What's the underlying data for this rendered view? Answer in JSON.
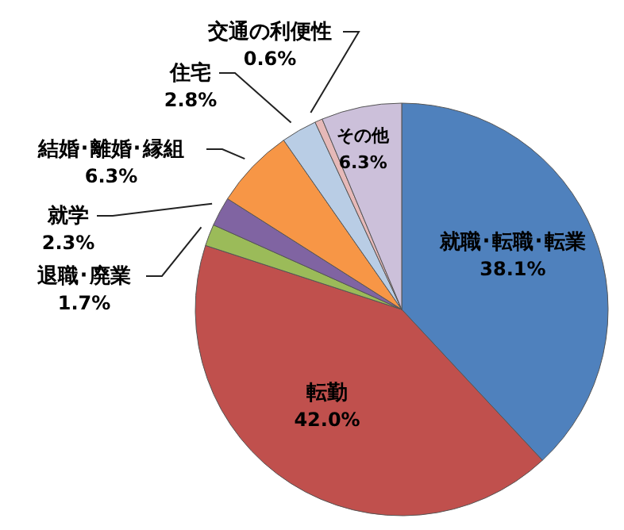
{
  "chart_data": {
    "type": "pie",
    "categories": [
      "就職･転職･転業",
      "転勤",
      "退職･廃業",
      "就学",
      "結婚･離婚･縁組",
      "住宅",
      "交通の利便性",
      "その他"
    ],
    "values": [
      38.1,
      42.0,
      1.7,
      2.3,
      6.3,
      2.8,
      0.6,
      6.3
    ],
    "value_labels": [
      "38.1%",
      "42.0%",
      "1.7%",
      "2.3%",
      "6.3%",
      "2.8%",
      "0.6%",
      "6.3%"
    ],
    "colors": [
      "#4f81bd",
      "#c0504d",
      "#9bbb59",
      "#8064a2",
      "#f79646",
      "#b9cde5",
      "#e6b9b8",
      "#ccc0da"
    ],
    "legend": false
  }
}
